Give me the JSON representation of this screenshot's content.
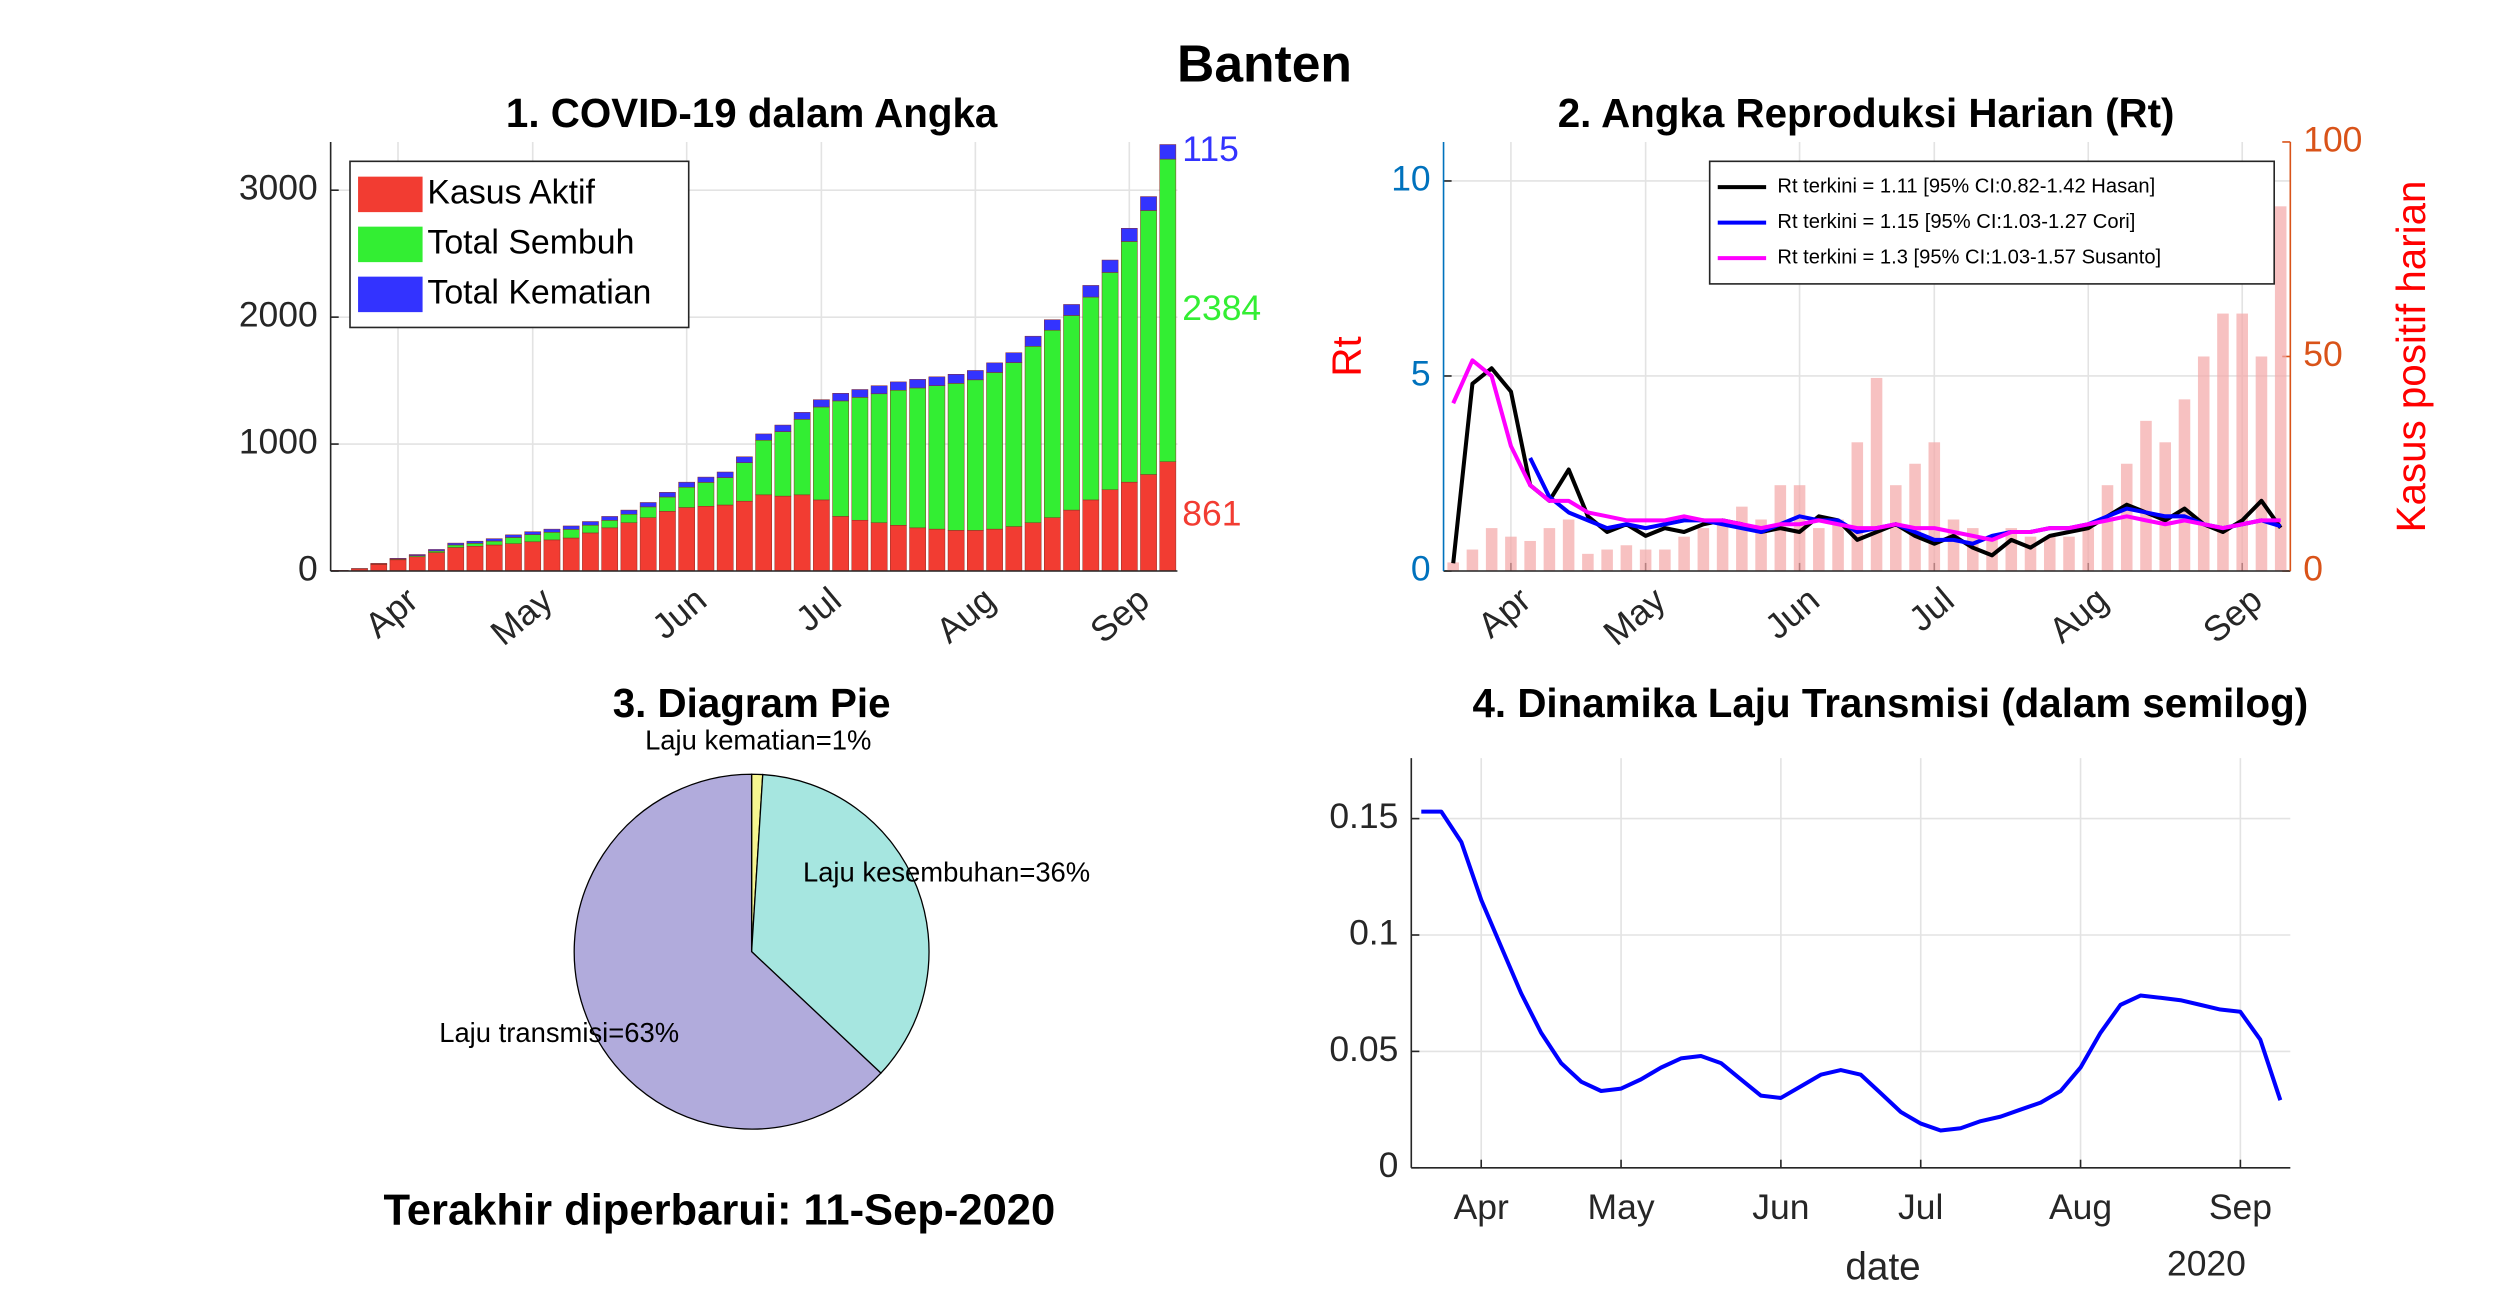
{
  "title": "Banten",
  "footer": "Terakhir diperbarui: 11-Sep-2020",
  "chart_data": [
    {
      "type": "bar",
      "stacked": true,
      "title": "1. COVID-19 dalam Angka",
      "categories": [
        null,
        null,
        null,
        "Apr",
        null,
        null,
        null,
        null,
        null,
        null,
        "May",
        null,
        null,
        null,
        null,
        null,
        null,
        null,
        "Jun",
        null,
        null,
        null,
        null,
        null,
        null,
        "Jul",
        null,
        null,
        null,
        null,
        null,
        null,
        null,
        "Aug",
        null,
        null,
        null,
        null,
        null,
        null,
        null,
        "Sep",
        null,
        null
      ],
      "series": [
        {
          "name": "Kasus Aktif",
          "color": "#f23c32",
          "values": [
            4,
            17,
            52,
            88,
            112,
            145,
            185,
            195,
            205,
            215,
            230,
            245,
            260,
            300,
            340,
            380,
            420,
            470,
            500,
            510,
            520,
            550,
            600,
            590,
            600,
            560,
            430,
            400,
            380,
            360,
            340,
            330,
            320,
            320,
            330,
            350,
            380,
            420,
            480,
            560,
            640,
            700,
            760,
            861
          ]
        },
        {
          "name": "Total Sembuh",
          "color": "#33ee33",
          "values": [
            0,
            1,
            4,
            6,
            9,
            13,
            20,
            23,
            31,
            49,
            57,
            60,
            68,
            61,
            59,
            67,
            85,
            113,
            160,
            188,
            216,
            303,
            430,
            508,
            595,
            732,
            910,
            968,
            1016,
            1064,
            1102,
            1130,
            1158,
            1186,
            1234,
            1292,
            1390,
            1477,
            1533,
            1598,
            1712,
            1896,
            2080,
            2384
          ]
        },
        {
          "name": "Total Kematian",
          "color": "#3333ff",
          "values": [
            1,
            2,
            4,
            6,
            9,
            12,
            15,
            17,
            19,
            21,
            23,
            25,
            27,
            29,
            31,
            33,
            35,
            37,
            40,
            42,
            44,
            47,
            50,
            52,
            55,
            58,
            60,
            62,
            64,
            66,
            68,
            70,
            72,
            74,
            76,
            78,
            80,
            83,
            87,
            92,
            98,
            104,
            110,
            115
          ]
        }
      ],
      "ylim": [
        0,
        3380
      ],
      "yticks": [
        0,
        1000,
        2000,
        3000
      ],
      "grid": true,
      "legend": "northwest"
    },
    {
      "type": "line",
      "title": "2. Angka Reproduksi Harian (Rt)",
      "ylabel": "Rt",
      "y2label": "Kasus positif harian",
      "categories": [
        null,
        null,
        null,
        "Apr",
        null,
        null,
        null,
        null,
        null,
        null,
        "May",
        null,
        null,
        null,
        null,
        null,
        null,
        null,
        "Jun",
        null,
        null,
        null,
        null,
        null,
        null,
        "Jul",
        null,
        null,
        null,
        null,
        null,
        null,
        null,
        "Aug",
        null,
        null,
        null,
        null,
        null,
        null,
        null,
        "Sep",
        null,
        null
      ],
      "series": [
        {
          "type": "bar",
          "axis": "y2",
          "color": "#f4a6a6",
          "values": [
            2,
            5,
            10,
            8,
            7,
            10,
            12,
            4,
            5,
            6,
            5,
            5,
            8,
            10,
            12,
            15,
            12,
            20,
            20,
            10,
            12,
            30,
            45,
            20,
            25,
            30,
            12,
            10,
            8,
            10,
            8,
            8,
            8,
            10,
            20,
            25,
            35,
            30,
            40,
            50,
            60,
            60,
            50,
            85
          ]
        },
        {
          "name": "Rt terkini = 1.11 [95% CI:0.82-1.42 Hasan]",
          "color": "#000000",
          "values": [
            0.2,
            4.8,
            5.2,
            4.6,
            2.2,
            1.8,
            2.6,
            1.4,
            1.0,
            1.2,
            0.9,
            1.1,
            1.0,
            1.2,
            1.3,
            1.2,
            1.0,
            1.1,
            1.0,
            1.4,
            1.3,
            0.8,
            1.0,
            1.2,
            0.9,
            0.7,
            0.9,
            0.6,
            0.4,
            0.8,
            0.6,
            0.9,
            1.0,
            1.1,
            1.4,
            1.7,
            1.5,
            1.3,
            1.6,
            1.2,
            1.0,
            1.3,
            1.8,
            1.11
          ]
        },
        {
          "name": "Rt terkini = 1.15 [95% CI:1.03-1.27 Cori]",
          "color": "#0000ff",
          "values": [
            null,
            null,
            null,
            null,
            2.9,
            1.9,
            1.5,
            1.3,
            1.1,
            1.2,
            1.1,
            1.2,
            1.3,
            1.3,
            1.2,
            1.1,
            1.0,
            1.2,
            1.4,
            1.3,
            1.3,
            1.0,
            1.1,
            1.2,
            1.0,
            0.8,
            0.8,
            0.7,
            0.9,
            1.0,
            1.0,
            1.1,
            1.1,
            1.2,
            1.4,
            1.6,
            1.5,
            1.4,
            1.4,
            1.2,
            1.1,
            1.2,
            1.3,
            1.15
          ]
        },
        {
          "name": "Rt terkini = 1.3 [95% CI:1.03-1.57 Susanto]",
          "color": "#ff00ff",
          "values": [
            4.3,
            5.4,
            5.0,
            3.2,
            2.2,
            1.8,
            1.8,
            1.5,
            1.4,
            1.3,
            1.3,
            1.3,
            1.4,
            1.3,
            1.3,
            1.2,
            1.1,
            1.2,
            1.2,
            1.3,
            1.2,
            1.1,
            1.1,
            1.2,
            1.1,
            1.1,
            1.0,
            0.9,
            0.8,
            1.0,
            1.0,
            1.1,
            1.1,
            1.2,
            1.3,
            1.4,
            1.3,
            1.2,
            1.3,
            1.2,
            1.1,
            1.2,
            1.3,
            1.3
          ]
        }
      ],
      "ylim": [
        0,
        11
      ],
      "yticks": [
        0,
        5,
        10
      ],
      "y2lim": [
        0,
        100
      ],
      "y2ticks": [
        0,
        50,
        100
      ],
      "grid": true,
      "legend": "northeast"
    },
    {
      "type": "pie",
      "title": "3. Diagram Pie",
      "values": [
        1,
        36,
        63
      ],
      "value_labels": [
        "Laju kematian=1%",
        "Laju kesembuhan=36%",
        "Laju transmisi=63%"
      ],
      "colors": [
        "#f5f590",
        "#a6e6e0",
        "#b1abdc"
      ]
    },
    {
      "type": "line",
      "title": "4. Dinamika Laju Transmisi (dalam semilog)",
      "xlabel": "date",
      "annotation": "2020",
      "categories": [
        null,
        null,
        null,
        "Apr",
        null,
        null,
        null,
        null,
        null,
        null,
        "May",
        null,
        null,
        null,
        null,
        null,
        null,
        null,
        "Jun",
        null,
        null,
        null,
        null,
        null,
        null,
        "Jul",
        null,
        null,
        null,
        null,
        null,
        null,
        null,
        "Aug",
        null,
        null,
        null,
        null,
        null,
        null,
        null,
        "Sep",
        null,
        null
      ],
      "series": [
        {
          "color": "#0000ff",
          "values": [
            0.153,
            0.153,
            0.14,
            0.115,
            0.095,
            0.075,
            0.058,
            0.045,
            0.037,
            0.033,
            0.034,
            0.038,
            0.043,
            0.047,
            0.048,
            0.045,
            0.038,
            0.031,
            0.03,
            0.035,
            0.04,
            0.042,
            0.04,
            0.032,
            0.024,
            0.019,
            0.016,
            0.017,
            0.02,
            0.022,
            0.025,
            0.028,
            0.033,
            0.043,
            0.058,
            0.07,
            0.074,
            0.073,
            0.072,
            0.07,
            0.068,
            0.067,
            0.055,
            0.029
          ]
        }
      ],
      "ylim": [
        0,
        0.176
      ],
      "yticks": [
        0,
        0.05,
        0.1,
        0.15
      ],
      "grid": true
    }
  ]
}
